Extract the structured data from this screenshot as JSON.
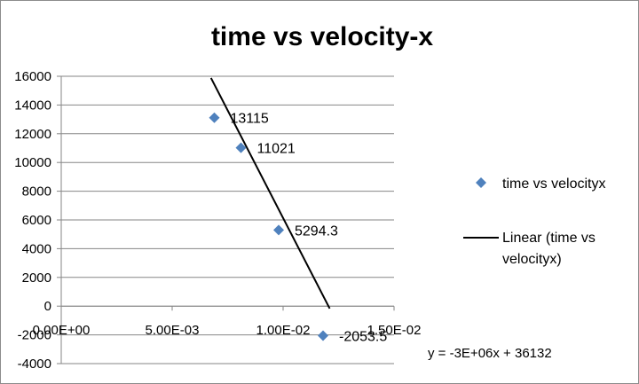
{
  "chart_data": {
    "type": "scatter",
    "title": "time vs velocity-x",
    "xlabel": "",
    "ylabel": "",
    "xlim": [
      0,
      0.015
    ],
    "ylim": [
      -4000,
      16000
    ],
    "x_ticks": [
      0,
      0.005,
      0.01,
      0.015
    ],
    "x_tick_labels": [
      "0.00E+00",
      "5.00E-03",
      "1.00E-02",
      "1.50E-02"
    ],
    "y_ticks": [
      -4000,
      -2000,
      0,
      2000,
      4000,
      6000,
      8000,
      10000,
      12000,
      14000,
      16000
    ],
    "y_tick_labels": [
      "-4000",
      "-2000",
      "0",
      "2000",
      "4000",
      "6000",
      "8000",
      "10000",
      "12000",
      "14000",
      "16000"
    ],
    "grid": true,
    "legend_position": "right",
    "series": [
      {
        "name": "time vs velocityx",
        "marker": "diamond",
        "color": "#4f81bd",
        "x": [
          0.0069,
          0.0081,
          0.0098,
          0.0118
        ],
        "y": [
          13115,
          11021,
          5294.3,
          -2053.5
        ],
        "labels": [
          "13115",
          "11021",
          "5294.3",
          "-2053.5"
        ]
      }
    ],
    "trendline": {
      "name": "Linear (time vs velocityx)",
      "legend_lines": [
        "Linear (time vs",
        "velocityx)"
      ],
      "color": "#000000",
      "slope": -3000000,
      "intercept": 36132,
      "x_range": [
        0.00675,
        0.0121
      ],
      "equation": "y = -3E+06x + 36132"
    }
  }
}
